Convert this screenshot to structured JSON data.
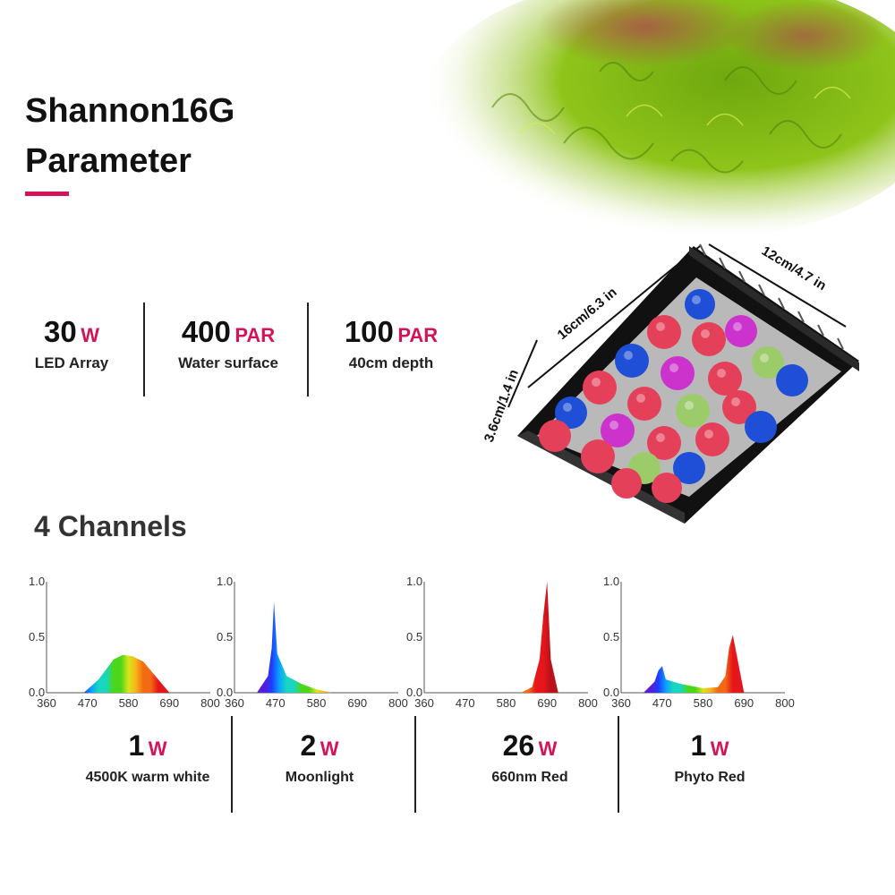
{
  "header": {
    "title_line1": "Shannon16G",
    "title_line2": "Parameter",
    "accent_color": "#d4145a"
  },
  "stats": [
    {
      "value": "30",
      "unit": "W",
      "label": "LED Array"
    },
    {
      "value": "400",
      "unit": "PAR",
      "label": "Water surface"
    },
    {
      "value": "100",
      "unit": "PAR",
      "label": "40cm depth"
    }
  ],
  "dimensions": {
    "length": "16cm/6.3 in",
    "width": "12cm/4.7 in",
    "height": "3.6cm/1.4 in"
  },
  "channels_title": "4 Channels",
  "axis": {
    "x_ticks": [
      "360",
      "470",
      "580",
      "690",
      "800"
    ],
    "y_ticks": [
      "0.0",
      "0.5",
      "1.0"
    ]
  },
  "channels": [
    {
      "value": "1",
      "unit": "W",
      "label": "4500K warm white"
    },
    {
      "value": "2",
      "unit": "W",
      "label": "Moonlight"
    },
    {
      "value": "26",
      "unit": "W",
      "label": "660nm Red"
    },
    {
      "value": "1",
      "unit": "W",
      "label": "Phyto Red"
    }
  ],
  "chart_data": [
    {
      "type": "area",
      "xlim": [
        360,
        800
      ],
      "ylim": [
        0,
        1.0
      ],
      "series": [
        {
          "x": [
            460,
            500,
            540,
            565,
            590,
            620,
            660,
            690
          ],
          "y": [
            0,
            0.12,
            0.3,
            0.34,
            0.33,
            0.28,
            0.12,
            0
          ]
        }
      ]
    },
    {
      "type": "area",
      "xlim": [
        360,
        800
      ],
      "ylim": [
        0,
        1.0
      ],
      "series": [
        {
          "x": [
            420,
            450,
            460,
            466,
            475,
            500,
            540,
            580,
            620
          ],
          "y": [
            0,
            0.15,
            0.4,
            0.82,
            0.35,
            0.15,
            0.08,
            0.03,
            0
          ]
        }
      ]
    },
    {
      "type": "area",
      "xlim": [
        360,
        800
      ],
      "ylim": [
        0,
        1.0
      ],
      "series": [
        {
          "x": [
            620,
            650,
            670,
            680,
            690,
            700,
            720
          ],
          "y": [
            0,
            0.05,
            0.3,
            0.7,
            1.0,
            0.3,
            0
          ]
        }
      ]
    },
    {
      "type": "area",
      "xlim": [
        360,
        800
      ],
      "ylim": [
        0,
        1.0
      ],
      "series": [
        {
          "x": [
            420,
            450,
            460,
            470,
            480,
            520,
            580,
            620,
            640,
            650,
            660,
            670,
            690
          ],
          "y": [
            0,
            0.1,
            0.2,
            0.24,
            0.12,
            0.08,
            0.04,
            0.05,
            0.15,
            0.4,
            0.52,
            0.35,
            0
          ]
        }
      ]
    }
  ]
}
